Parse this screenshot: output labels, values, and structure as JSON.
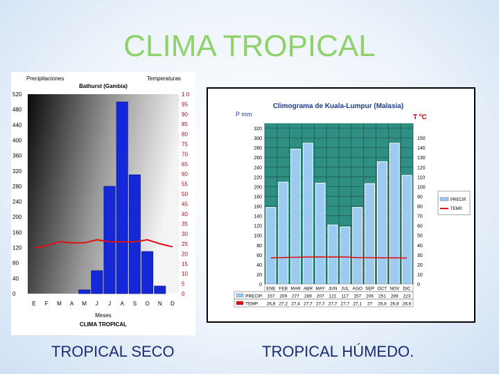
{
  "slide": {
    "title": "CLIMA TROPICAL",
    "captions": {
      "left": "TROPICAL SECO",
      "right": "TROPICAL HÚMEDO."
    }
  },
  "chart_data": [
    {
      "type": "bar",
      "title": "Bathurst (Gambia)",
      "left_axis_title": "Precipitaciones",
      "right_axis_title": "Temperaturas",
      "xlabel": "Meses",
      "subtitle": "CLIMA TROPICAL",
      "categories": [
        "E",
        "F",
        "M",
        "A",
        "M",
        "J",
        "J",
        "A",
        "S",
        "O",
        "N",
        "D"
      ],
      "series": [
        {
          "name": "Precipitaciones",
          "kind": "bar",
          "axis": "left",
          "values": [
            0,
            0,
            0,
            0,
            10,
            60,
            280,
            500,
            310,
            110,
            20,
            0
          ],
          "color": "#1428d8"
        },
        {
          "name": "Temperaturas",
          "kind": "line",
          "axis": "right",
          "values": [
            23,
            24,
            26,
            25.5,
            25.5,
            27,
            26,
            26,
            26,
            27,
            25,
            23.5
          ],
          "color": "#e01010"
        }
      ],
      "ylim_left": [
        0,
        520
      ],
      "left_ticks": [
        0,
        40,
        80,
        120,
        160,
        200,
        240,
        280,
        320,
        360,
        400,
        440,
        480,
        520
      ],
      "ylim_right": [
        0,
        100
      ],
      "right_ticks": [
        0,
        5,
        10,
        15,
        20,
        25,
        30,
        35,
        40,
        45,
        50,
        55,
        60,
        65,
        70,
        75,
        80,
        85,
        90,
        95,
        100
      ],
      "right_tick_labels": [
        "0",
        "5",
        "10",
        "15",
        "20",
        "25",
        "30",
        "35",
        "40",
        "45",
        "50",
        "55",
        "60",
        "65",
        "70",
        "75",
        "80",
        "85",
        "90",
        "95",
        "1 0"
      ]
    },
    {
      "type": "bar",
      "title": "Climograma de Kuala-Lumpur (Malasia)",
      "left_axis_title": "P mm",
      "right_axis_title": "T ºC",
      "categories": [
        "ENE",
        "FEB",
        "MAR",
        "ABR",
        "MAY",
        "JUN",
        "JUL",
        "AGO",
        "SEP",
        "OCT",
        "NOV",
        "DIC"
      ],
      "series": [
        {
          "name": "PRECIP.",
          "kind": "bar",
          "axis": "left",
          "values": [
            157,
            209,
            277,
            289,
            207,
            121,
            117,
            157,
            206,
            251,
            289,
            223
          ],
          "color": "#9ccaf0"
        },
        {
          "name": "TEMP.",
          "kind": "line",
          "axis": "right",
          "values": [
            26.8,
            27.2,
            27.4,
            27.7,
            27.7,
            27.7,
            27.7,
            27.1,
            27.0,
            26.8,
            26.8,
            26.6
          ],
          "color": "#e01010"
        }
      ],
      "table_rows": [
        {
          "label": "PRECIP.",
          "values": [
            "157",
            "209",
            "277",
            "289",
            "207",
            "121",
            "117",
            "157",
            "206",
            "251",
            "289",
            "223"
          ]
        },
        {
          "label": "TEMP.",
          "values": [
            "26,8",
            "27,2",
            "27,4",
            "27,7",
            "27,7",
            "27,7",
            "27,7",
            "27,1",
            "27",
            "26,8",
            "26,8",
            "26,6"
          ]
        }
      ],
      "ylim_left": [
        0,
        330
      ],
      "left_ticks": [
        0,
        20,
        40,
        60,
        80,
        100,
        120,
        140,
        160,
        180,
        200,
        220,
        240,
        260,
        280,
        300,
        320
      ],
      "ylim_right": [
        0,
        165
      ],
      "right_ticks": [
        0,
        10,
        20,
        30,
        40,
        50,
        60,
        70,
        80,
        90,
        100,
        110,
        120,
        130,
        140,
        150
      ],
      "legend": [
        "PRECIP.",
        "TEMP."
      ],
      "legend_placement": "right",
      "grid": true
    }
  ]
}
